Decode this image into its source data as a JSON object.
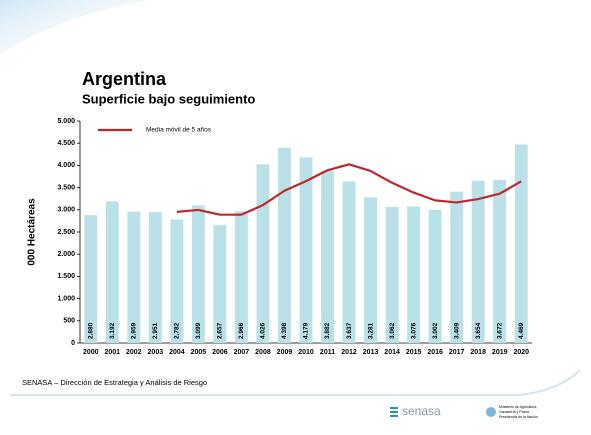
{
  "header": {
    "title": "Argentina",
    "subtitle": "Superficie bajo seguimiento"
  },
  "chart_data": {
    "type": "bar",
    "ylabel": "000 Hectáreas",
    "categories": [
      "2000",
      "2001",
      "2002",
      "2003",
      "2004",
      "2005",
      "2006",
      "2007",
      "2008",
      "2009",
      "2010",
      "2011",
      "2012",
      "2013",
      "2014",
      "2015",
      "2016",
      "2017",
      "2018",
      "2019",
      "2020"
    ],
    "values": [
      2880,
      3192,
      2959,
      2951,
      2782,
      3099,
      2657,
      2966,
      4026,
      4398,
      4179,
      3882,
      3637,
      3281,
      3062,
      3076,
      3002,
      3409,
      3654,
      3672,
      4469
    ],
    "value_labels": [
      "2.880",
      "3.192",
      "2.959",
      "2.951",
      "2.782",
      "3.099",
      "2.657",
      "2.966",
      "4.026",
      "4.398",
      "4.179",
      "3.882",
      "3.637",
      "3.281",
      "3.062",
      "3.076",
      "3.002",
      "3.409",
      "3.654",
      "3.672",
      "4.469"
    ],
    "color": "#b9e1e7",
    "line": {
      "name": "Media móvil de 5 años",
      "color": "#c0282d",
      "values": [
        null,
        null,
        null,
        null,
        2953,
        2997,
        2890,
        2891,
        3106,
        3429,
        3645,
        3890,
        4024,
        3875,
        3608,
        3388,
        3212,
        3166,
        3241,
        3363,
        3641
      ]
    },
    "ylim": [
      0,
      5000
    ],
    "yticks": [
      0,
      500,
      {
        "value": 1000,
        "label": "1.000"
      },
      {
        "value": 1500,
        "label": "1.500"
      },
      {
        "value": 2000,
        "label": "2.000"
      },
      {
        "value": 2500,
        "label": "2.500"
      },
      {
        "value": 3000,
        "label": "3.000"
      },
      {
        "value": 3500,
        "label": "3.500"
      },
      {
        "value": 4000,
        "label": "4.000"
      },
      {
        "value": 4500,
        "label": "4.500"
      },
      {
        "value": 5000,
        "label": "5.000"
      }
    ],
    "grid": false,
    "legend": "top-left"
  },
  "footer": {
    "source": "SENASA – Dirección de Estrategia  y Análisis de Riesgo",
    "logo": "senasa",
    "ministry": [
      "Ministerio de Agricultura,",
      "Ganadería y Pesca",
      "Presidencia de la Nación"
    ]
  }
}
